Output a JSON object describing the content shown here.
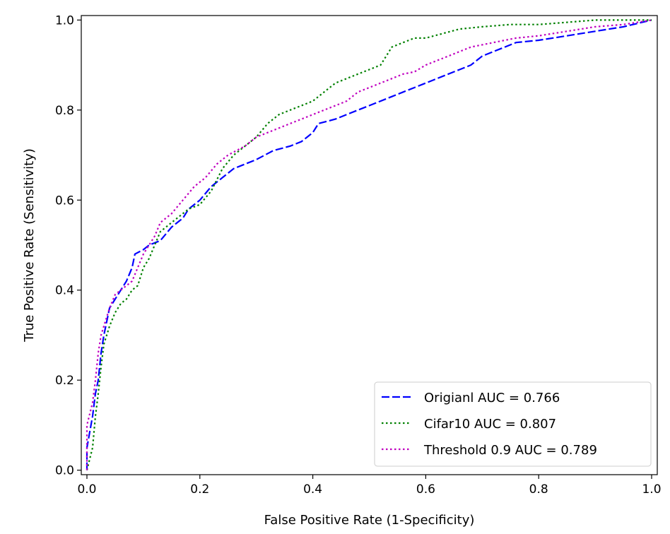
{
  "chart_data": {
    "type": "line",
    "title": "",
    "xlabel": "False Positive Rate (1-Specificity)",
    "ylabel": "True Positive Rate (Sensitivity)",
    "xlim": [
      -0.01,
      1.01
    ],
    "ylim": [
      -0.01,
      1.01
    ],
    "x_ticks": [
      0.0,
      0.2,
      0.4,
      0.6,
      0.8,
      1.0
    ],
    "y_ticks": [
      0.0,
      0.2,
      0.4,
      0.6,
      0.8,
      1.0
    ],
    "x_tick_labels": [
      "0.0",
      "0.2",
      "0.4",
      "0.6",
      "0.8",
      "1.0"
    ],
    "y_tick_labels": [
      "0.0",
      "0.2",
      "0.4",
      "0.6",
      "0.8",
      "1.0"
    ],
    "grid": false,
    "legend_position": "bottom-right",
    "series": [
      {
        "name": "Origianl AUC = 0.766",
        "color": "#0000ff",
        "style": "dashed",
        "points": [
          [
            0.0,
            0.0
          ],
          [
            0.0,
            0.05
          ],
          [
            0.01,
            0.12
          ],
          [
            0.015,
            0.17
          ],
          [
            0.02,
            0.2
          ],
          [
            0.025,
            0.26
          ],
          [
            0.03,
            0.3
          ],
          [
            0.035,
            0.33
          ],
          [
            0.04,
            0.36
          ],
          [
            0.05,
            0.38
          ],
          [
            0.06,
            0.4
          ],
          [
            0.07,
            0.42
          ],
          [
            0.08,
            0.45
          ],
          [
            0.085,
            0.48
          ],
          [
            0.1,
            0.49
          ],
          [
            0.11,
            0.5
          ],
          [
            0.13,
            0.51
          ],
          [
            0.15,
            0.54
          ],
          [
            0.17,
            0.56
          ],
          [
            0.18,
            0.58
          ],
          [
            0.2,
            0.6
          ],
          [
            0.22,
            0.63
          ],
          [
            0.24,
            0.65
          ],
          [
            0.26,
            0.67
          ],
          [
            0.28,
            0.68
          ],
          [
            0.3,
            0.69
          ],
          [
            0.33,
            0.71
          ],
          [
            0.36,
            0.72
          ],
          [
            0.38,
            0.73
          ],
          [
            0.4,
            0.75
          ],
          [
            0.41,
            0.77
          ],
          [
            0.44,
            0.78
          ],
          [
            0.46,
            0.79
          ],
          [
            0.48,
            0.8
          ],
          [
            0.5,
            0.81
          ],
          [
            0.52,
            0.82
          ],
          [
            0.54,
            0.83
          ],
          [
            0.56,
            0.84
          ],
          [
            0.58,
            0.85
          ],
          [
            0.6,
            0.86
          ],
          [
            0.62,
            0.87
          ],
          [
            0.64,
            0.88
          ],
          [
            0.66,
            0.89
          ],
          [
            0.68,
            0.9
          ],
          [
            0.7,
            0.92
          ],
          [
            0.72,
            0.93
          ],
          [
            0.74,
            0.94
          ],
          [
            0.76,
            0.95
          ],
          [
            0.8,
            0.955
          ],
          [
            0.85,
            0.965
          ],
          [
            0.9,
            0.975
          ],
          [
            0.95,
            0.985
          ],
          [
            1.0,
            1.0
          ]
        ]
      },
      {
        "name": "Cifar10 AUC = 0.807",
        "color": "#008000",
        "style": "dotted",
        "points": [
          [
            0.0,
            0.0
          ],
          [
            0.01,
            0.05
          ],
          [
            0.015,
            0.12
          ],
          [
            0.02,
            0.17
          ],
          [
            0.025,
            0.23
          ],
          [
            0.03,
            0.28
          ],
          [
            0.04,
            0.32
          ],
          [
            0.05,
            0.35
          ],
          [
            0.06,
            0.37
          ],
          [
            0.07,
            0.38
          ],
          [
            0.08,
            0.4
          ],
          [
            0.09,
            0.41
          ],
          [
            0.1,
            0.45
          ],
          [
            0.11,
            0.47
          ],
          [
            0.12,
            0.5
          ],
          [
            0.13,
            0.53
          ],
          [
            0.15,
            0.55
          ],
          [
            0.18,
            0.58
          ],
          [
            0.2,
            0.59
          ],
          [
            0.22,
            0.62
          ],
          [
            0.24,
            0.67
          ],
          [
            0.26,
            0.7
          ],
          [
            0.28,
            0.72
          ],
          [
            0.3,
            0.74
          ],
          [
            0.32,
            0.77
          ],
          [
            0.34,
            0.79
          ],
          [
            0.36,
            0.8
          ],
          [
            0.38,
            0.81
          ],
          [
            0.4,
            0.82
          ],
          [
            0.42,
            0.84
          ],
          [
            0.44,
            0.86
          ],
          [
            0.46,
            0.87
          ],
          [
            0.48,
            0.88
          ],
          [
            0.5,
            0.89
          ],
          [
            0.52,
            0.9
          ],
          [
            0.54,
            0.94
          ],
          [
            0.56,
            0.95
          ],
          [
            0.58,
            0.96
          ],
          [
            0.6,
            0.96
          ],
          [
            0.63,
            0.97
          ],
          [
            0.66,
            0.98
          ],
          [
            0.7,
            0.985
          ],
          [
            0.75,
            0.99
          ],
          [
            0.8,
            0.99
          ],
          [
            0.85,
            0.995
          ],
          [
            0.9,
            1.0
          ],
          [
            1.0,
            1.0
          ]
        ]
      },
      {
        "name": "Threshold 0.9 AUC = 0.789",
        "color": "#bf00bf",
        "style": "dotted",
        "points": [
          [
            0.0,
            0.0
          ],
          [
            0.0,
            0.1
          ],
          [
            0.01,
            0.15
          ],
          [
            0.015,
            0.2
          ],
          [
            0.02,
            0.26
          ],
          [
            0.025,
            0.3
          ],
          [
            0.03,
            0.32
          ],
          [
            0.04,
            0.36
          ],
          [
            0.05,
            0.39
          ],
          [
            0.06,
            0.4
          ],
          [
            0.07,
            0.41
          ],
          [
            0.08,
            0.42
          ],
          [
            0.1,
            0.48
          ],
          [
            0.11,
            0.5
          ],
          [
            0.12,
            0.52
          ],
          [
            0.13,
            0.55
          ],
          [
            0.15,
            0.57
          ],
          [
            0.17,
            0.6
          ],
          [
            0.19,
            0.63
          ],
          [
            0.21,
            0.65
          ],
          [
            0.23,
            0.68
          ],
          [
            0.25,
            0.7
          ],
          [
            0.28,
            0.72
          ],
          [
            0.3,
            0.74
          ],
          [
            0.32,
            0.75
          ],
          [
            0.34,
            0.76
          ],
          [
            0.36,
            0.77
          ],
          [
            0.38,
            0.78
          ],
          [
            0.4,
            0.79
          ],
          [
            0.42,
            0.8
          ],
          [
            0.44,
            0.81
          ],
          [
            0.46,
            0.82
          ],
          [
            0.48,
            0.84
          ],
          [
            0.5,
            0.85
          ],
          [
            0.52,
            0.86
          ],
          [
            0.54,
            0.87
          ],
          [
            0.56,
            0.88
          ],
          [
            0.58,
            0.885
          ],
          [
            0.6,
            0.9
          ],
          [
            0.62,
            0.91
          ],
          [
            0.64,
            0.92
          ],
          [
            0.66,
            0.93
          ],
          [
            0.68,
            0.94
          ],
          [
            0.7,
            0.945
          ],
          [
            0.72,
            0.95
          ],
          [
            0.74,
            0.955
          ],
          [
            0.76,
            0.96
          ],
          [
            0.8,
            0.965
          ],
          [
            0.85,
            0.975
          ],
          [
            0.9,
            0.985
          ],
          [
            0.95,
            0.99
          ],
          [
            1.0,
            1.0
          ]
        ]
      }
    ]
  }
}
